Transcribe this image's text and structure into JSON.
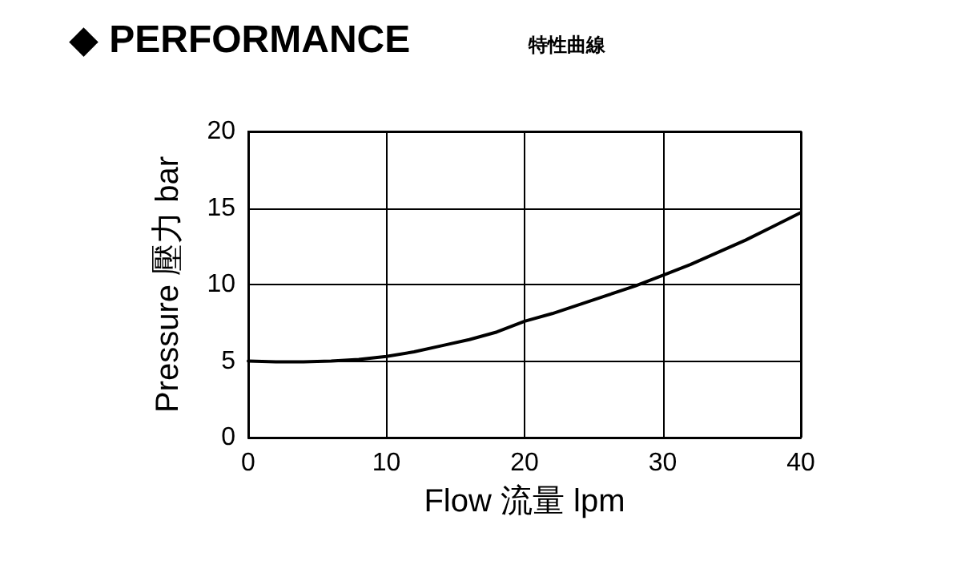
{
  "chart_data": {
    "type": "line",
    "title": "◆ PERFORMANCE",
    "subtitle": "特性曲線",
    "xlabel": "Flow 流量 lpm",
    "ylabel": "Pressure 壓力 bar",
    "x": [
      0,
      2,
      4,
      6,
      8,
      10,
      12,
      14,
      16,
      18,
      20,
      22,
      24,
      26,
      28,
      30,
      32,
      34,
      36,
      38,
      40
    ],
    "series": [
      {
        "color": "#000000",
        "values": [
          5,
          4.95,
          4.95,
          5,
          5.1,
          5.3,
          5.6,
          6,
          6.4,
          6.9,
          7.6,
          8.1,
          8.7,
          9.3,
          9.9,
          10.6,
          11.3,
          12.1,
          12.9,
          13.8,
          14.7
        ]
      }
    ],
    "xlim": [
      0,
      40
    ],
    "xticks": [
      0,
      10,
      20,
      30,
      40
    ],
    "ylim": [
      0,
      20
    ],
    "yticks": [
      0,
      5,
      10,
      15,
      20
    ],
    "grid": true,
    "marker": "none",
    "line_style": "solid"
  }
}
